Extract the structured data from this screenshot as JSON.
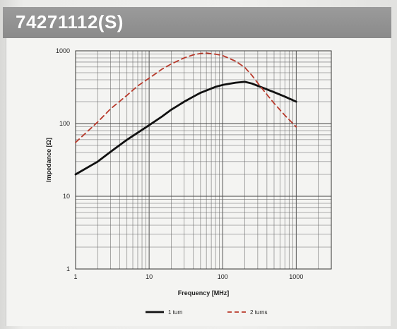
{
  "header": {
    "title": "74271112(S)"
  },
  "chart_data": {
    "type": "line",
    "title": "74271112(S)",
    "xlabel": "Frequency [MHz]",
    "ylabel": "Impedance [Ω]",
    "x_scale": "log",
    "y_scale": "log",
    "xlim": [
      1,
      3000
    ],
    "ylim": [
      1,
      1000
    ],
    "x_ticks": [
      "1",
      "10",
      "100",
      "1000"
    ],
    "y_ticks": [
      "1",
      "10",
      "100",
      "1000"
    ],
    "grid": true,
    "legend_position": "bottom",
    "series": [
      {
        "name": "1 turn",
        "color": "#111111",
        "style": "solid",
        "points": [
          [
            1,
            20
          ],
          [
            2,
            30
          ],
          [
            3,
            41
          ],
          [
            5,
            60
          ],
          [
            7,
            75
          ],
          [
            10,
            95
          ],
          [
            15,
            125
          ],
          [
            20,
            155
          ],
          [
            30,
            200
          ],
          [
            40,
            235
          ],
          [
            50,
            265
          ],
          [
            60,
            285
          ],
          [
            80,
            320
          ],
          [
            100,
            340
          ],
          [
            150,
            365
          ],
          [
            200,
            375
          ],
          [
            250,
            355
          ],
          [
            300,
            330
          ],
          [
            400,
            295
          ],
          [
            500,
            270
          ],
          [
            700,
            235
          ],
          [
            1000,
            200
          ]
        ]
      },
      {
        "name": "2 turns",
        "color": "#b83a2c",
        "style": "dashed",
        "points": [
          [
            1,
            55
          ],
          [
            2,
            105
          ],
          [
            3,
            160
          ],
          [
            5,
            245
          ],
          [
            7,
            330
          ],
          [
            10,
            420
          ],
          [
            15,
            560
          ],
          [
            20,
            660
          ],
          [
            30,
            800
          ],
          [
            40,
            880
          ],
          [
            50,
            920
          ],
          [
            60,
            930
          ],
          [
            80,
            900
          ],
          [
            100,
            860
          ],
          [
            150,
            720
          ],
          [
            200,
            590
          ],
          [
            250,
            460
          ],
          [
            300,
            360
          ],
          [
            400,
            250
          ],
          [
            500,
            190
          ],
          [
            700,
            130
          ],
          [
            1000,
            90
          ]
        ]
      }
    ]
  }
}
